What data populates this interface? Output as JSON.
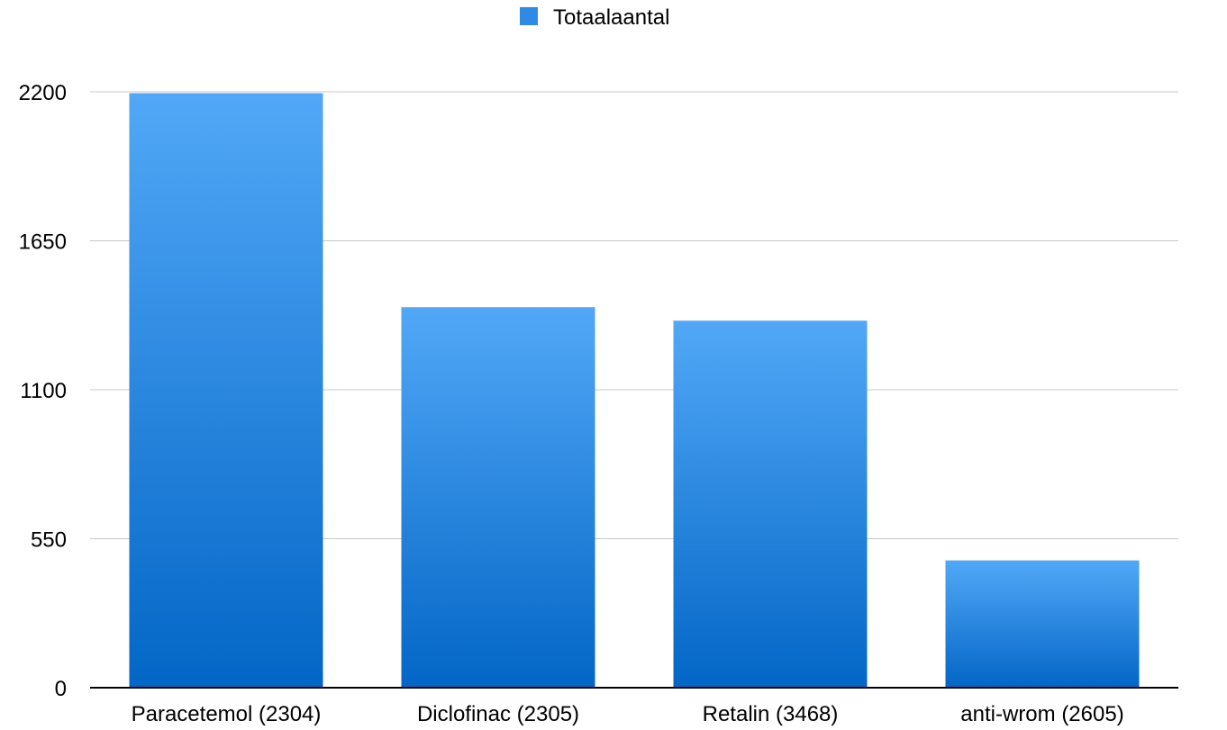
{
  "chart_data": {
    "type": "bar",
    "categories": [
      "Paracetemol (2304)",
      "Diclofinac (2305)",
      "Retalin (3468)",
      "anti-wrom (2605)"
    ],
    "series": [
      {
        "name": "Totaalaantal",
        "values": [
          2195,
          1405,
          1355,
          470
        ]
      }
    ],
    "ylim": [
      0,
      2200
    ],
    "yticks": [
      "0",
      "550",
      "1100",
      "1650",
      "2200"
    ],
    "legend_position": "top-center",
    "grid": true,
    "colors": {
      "bar_top": "#52a8f7",
      "bar_bottom": "#0366c6",
      "legend_swatch": "#2f8ae6",
      "grid": "#c8c8c8",
      "axis": "#000000"
    }
  }
}
